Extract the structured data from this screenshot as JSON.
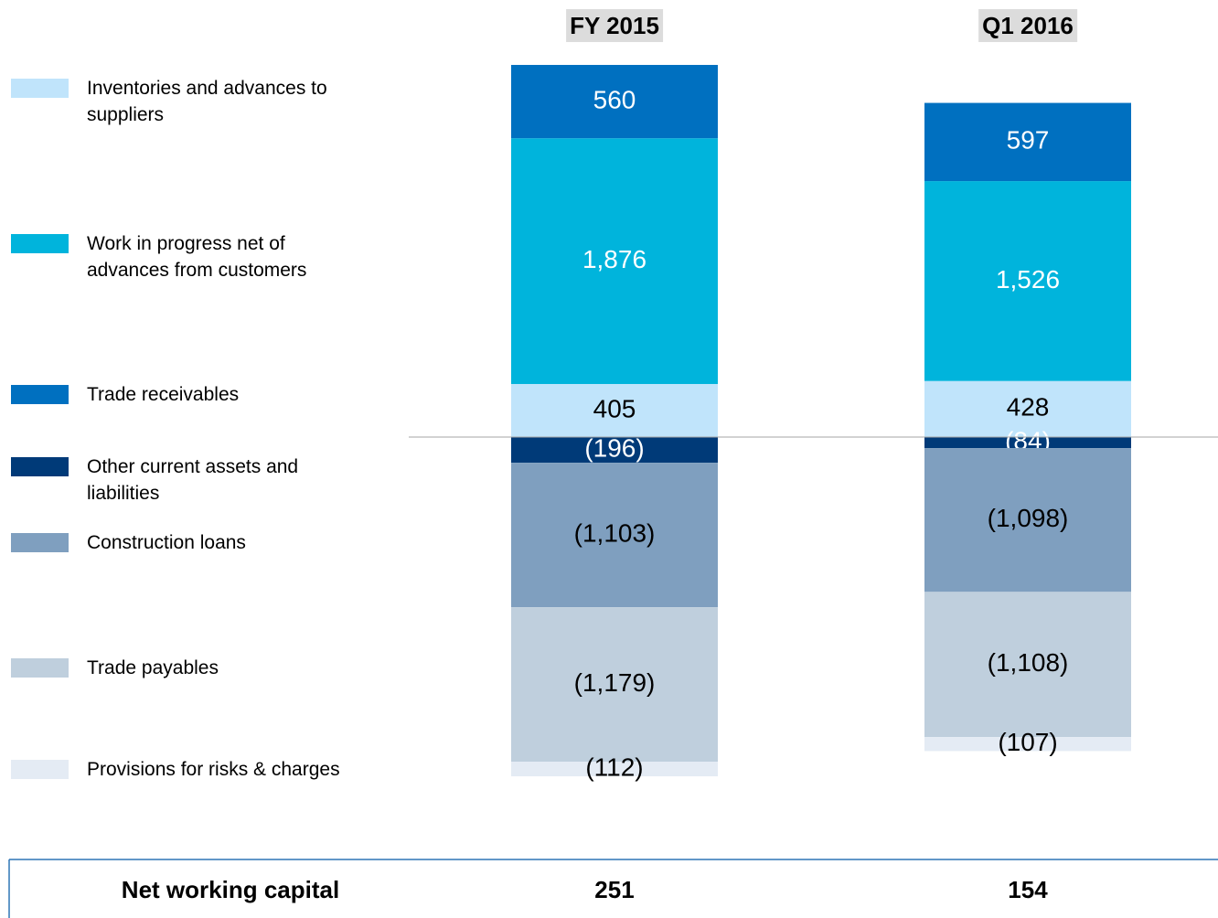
{
  "chart_data": {
    "type": "stacked_bar",
    "categories": [
      "FY 2015",
      "Q1 2016"
    ],
    "series": [
      {
        "name": "Inventories and advances to suppliers",
        "color": "#c0e4fb",
        "values": [
          405,
          428
        ],
        "value_labels": [
          "405",
          "428"
        ]
      },
      {
        "name": "Work in progress net of advances from customers",
        "color": "#00b4dc",
        "values": [
          1876,
          1526
        ],
        "value_labels": [
          "1,876",
          "1,526"
        ]
      },
      {
        "name": "Trade receivables",
        "color": "#0070c0",
        "values": [
          560,
          597
        ],
        "value_labels": [
          "560",
          "597"
        ]
      },
      {
        "name": "Other current assets and liabilities",
        "color": "#003a78",
        "values": [
          -196,
          -84
        ],
        "value_labels": [
          "(196)",
          "(84)"
        ]
      },
      {
        "name": "Construction loans",
        "color": "#7f9fbf",
        "values": [
          -1103,
          -1098
        ],
        "value_labels": [
          "(1,103)",
          "(1,098)"
        ]
      },
      {
        "name": "Trade payables",
        "color": "#bfcfdd",
        "values": [
          -1179,
          -1108
        ],
        "value_labels": [
          "(1,179)",
          "(1,108)"
        ]
      },
      {
        "name": "Provisions for risks & charges",
        "color": "#e4ebf4",
        "values": [
          -112,
          -107
        ],
        "value_labels": [
          "(112)",
          "(107)"
        ]
      }
    ],
    "total_label": "Net working capital",
    "totals": [
      251,
      154
    ]
  }
}
